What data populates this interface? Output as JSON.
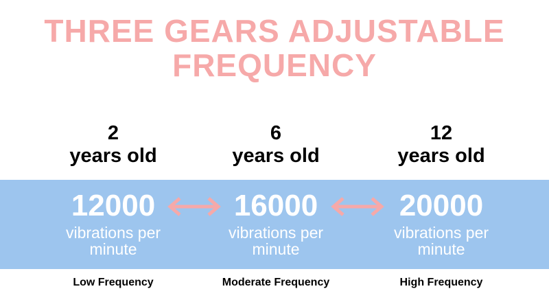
{
  "title": {
    "lines": [
      "THREE GEARS ADJUSTABLE",
      "FREQUENCY"
    ]
  },
  "columns": [
    {
      "age": "2",
      "age_unit": "years old",
      "frequency": "12000",
      "frequency_unit": "vibrations per minute",
      "level": "Low Frequency"
    },
    {
      "age": "6",
      "age_unit": "years old",
      "frequency": "16000",
      "frequency_unit": "vibrations per minute",
      "level": "Moderate Frequency"
    },
    {
      "age": "12",
      "age_unit": "years old",
      "frequency": "20000",
      "frequency_unit": "vibrations per minute",
      "level": "High Frequency"
    }
  ]
}
